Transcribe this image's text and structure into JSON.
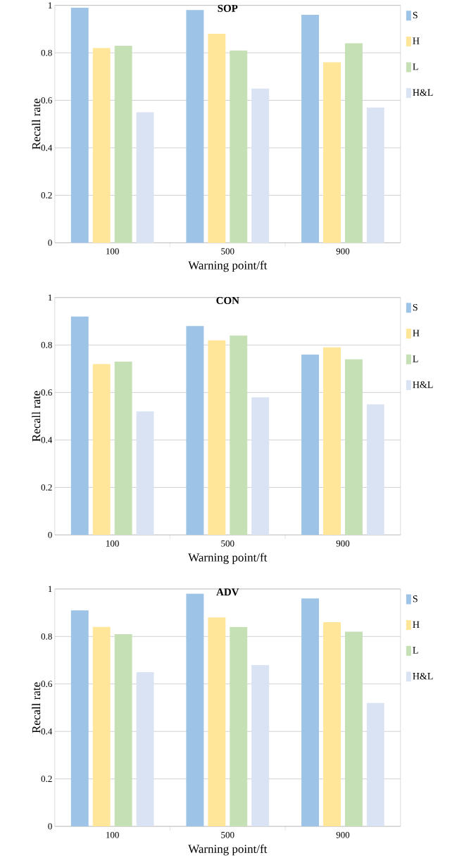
{
  "chart_data": [
    {
      "type": "bar",
      "title": "SOP",
      "xlabel": "Warning point/ft",
      "ylabel": "Recall rate",
      "categories": [
        "100",
        "500",
        "900"
      ],
      "ylim": [
        0,
        1
      ],
      "yticks": [
        0,
        0.2,
        0.4,
        0.6,
        0.8,
        1
      ],
      "grid": "y",
      "legend": "top right",
      "series": [
        {
          "name": "S",
          "color": "#9dc3e6",
          "values": [
            0.99,
            0.98,
            0.96
          ]
        },
        {
          "name": "H",
          "color": "#ffe699",
          "values": [
            0.82,
            0.88,
            0.76
          ]
        },
        {
          "name": "L",
          "color": "#c5e0b4",
          "values": [
            0.83,
            0.81,
            0.84
          ]
        },
        {
          "name": "H&L",
          "color": "#dae3f3",
          "values": [
            0.55,
            0.65,
            0.57
          ]
        }
      ]
    },
    {
      "type": "bar",
      "title": "CON",
      "xlabel": "Warning point/ft",
      "ylabel": "Recall rate",
      "categories": [
        "100",
        "500",
        "900"
      ],
      "ylim": [
        0,
        1
      ],
      "yticks": [
        0,
        0.2,
        0.4,
        0.6,
        0.8,
        1
      ],
      "grid": "y",
      "legend": "top right",
      "series": [
        {
          "name": "S",
          "color": "#9dc3e6",
          "values": [
            0.92,
            0.88,
            0.76
          ]
        },
        {
          "name": "H",
          "color": "#ffe699",
          "values": [
            0.72,
            0.82,
            0.79
          ]
        },
        {
          "name": "L",
          "color": "#c5e0b4",
          "values": [
            0.73,
            0.84,
            0.74
          ]
        },
        {
          "name": "H&L",
          "color": "#dae3f3",
          "values": [
            0.52,
            0.58,
            0.55
          ]
        }
      ]
    },
    {
      "type": "bar",
      "title": "ADV",
      "xlabel": "Warning point/ft",
      "ylabel": "Recall rate",
      "categories": [
        "100",
        "500",
        "900"
      ],
      "ylim": [
        0,
        1
      ],
      "yticks": [
        0,
        0.2,
        0.4,
        0.6,
        0.8,
        1
      ],
      "grid": "y",
      "legend": "top right",
      "series": [
        {
          "name": "S",
          "color": "#9dc3e6",
          "values": [
            0.91,
            0.98,
            0.96
          ]
        },
        {
          "name": "H",
          "color": "#ffe699",
          "values": [
            0.84,
            0.88,
            0.86
          ]
        },
        {
          "name": "L",
          "color": "#c5e0b4",
          "values": [
            0.81,
            0.84,
            0.82
          ]
        },
        {
          "name": "H&L",
          "color": "#dae3f3",
          "values": [
            0.65,
            0.68,
            0.52
          ]
        }
      ]
    }
  ]
}
